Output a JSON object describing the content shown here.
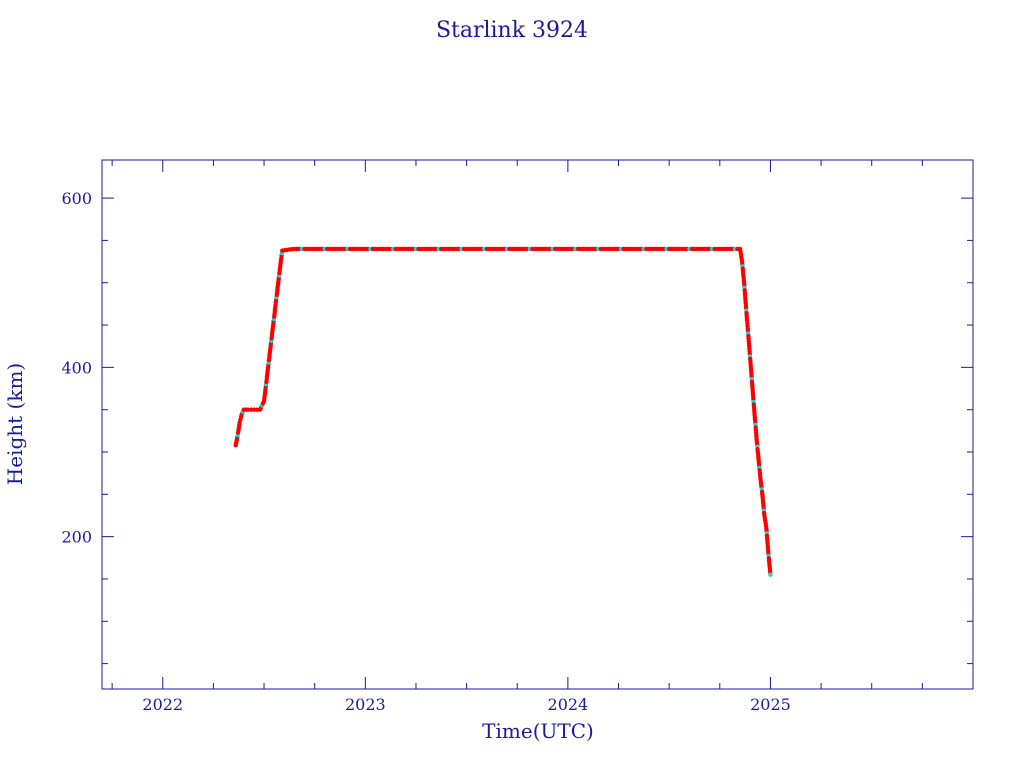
{
  "colors": {
    "axis": "#1a1a9e",
    "series": "#ff0000",
    "series_alt": "#00e0e0"
  },
  "chart_data": {
    "type": "scatter",
    "title": "Starlink 3924",
    "xlabel": "Time(UTC)",
    "ylabel": "Height (km)",
    "xlim": [
      2021.7,
      2026.0
    ],
    "ylim": [
      20,
      645
    ],
    "x_ticks": [
      2022,
      2023,
      2024,
      2025
    ],
    "x_tick_labels": [
      "2022",
      "2023",
      "2024",
      "2025"
    ],
    "y_ticks": [
      200,
      400,
      600
    ],
    "y_tick_labels": [
      "200",
      "400",
      "600"
    ],
    "grid": false,
    "series": [
      {
        "x": [
          2022.36,
          2022.37,
          2022.38,
          2022.39,
          2022.4,
          2022.42,
          2022.45,
          2022.48,
          2022.5,
          2022.51,
          2022.52,
          2022.53,
          2022.54,
          2022.55,
          2022.56,
          2022.57,
          2022.58,
          2022.59,
          2022.65,
          2022.75,
          2022.9,
          2023.1,
          2023.3,
          2023.5,
          2023.7,
          2023.9,
          2024.1,
          2024.3,
          2024.5,
          2024.7,
          2024.8,
          2024.85,
          2024.86,
          2024.87,
          2024.88,
          2024.89,
          2024.9,
          2024.91,
          2024.92,
          2024.93,
          2024.94,
          2024.95,
          2024.96,
          2024.97,
          2024.98,
          2024.99,
          2025.0
        ],
        "y": [
          308,
          320,
          335,
          345,
          350,
          350,
          350,
          350,
          360,
          380,
          400,
          420,
          440,
          460,
          480,
          500,
          520,
          538,
          540,
          540,
          540,
          540,
          540,
          540,
          540,
          540,
          540,
          540,
          540,
          540,
          540,
          540,
          525,
          500,
          470,
          440,
          410,
          380,
          350,
          320,
          295,
          270,
          250,
          225,
          210,
          180,
          155
        ]
      }
    ]
  }
}
